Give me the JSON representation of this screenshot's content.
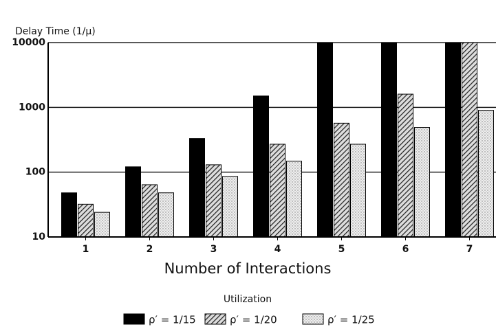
{
  "chart_data": {
    "type": "bar",
    "y_label": "Delay Time (1/μ)",
    "x_label": "Number of Interactions",
    "legend_title": "Utilization",
    "categories": [
      "1",
      "2",
      "3",
      "4",
      "5",
      "6",
      "7"
    ],
    "series": [
      {
        "name": "ρ′ = 1/15",
        "color": "#000000",
        "values": [
          48,
          121,
          331,
          1500,
          10000,
          10000,
          10000
        ]
      },
      {
        "name": "ρ′ = 1/20",
        "color": "hatch",
        "values": [
          32,
          64,
          130,
          270,
          570,
          1600,
          10000
        ]
      },
      {
        "name": "ρ′ = 1/25",
        "color": "stipple",
        "values": [
          24,
          48,
          86,
          148,
          270,
          490,
          900
        ]
      }
    ],
    "log_scale": true,
    "ylim": [
      10,
      10000
    ],
    "yticks": [
      10,
      100,
      1000,
      10000
    ],
    "grid": true,
    "legend": "bottom"
  }
}
